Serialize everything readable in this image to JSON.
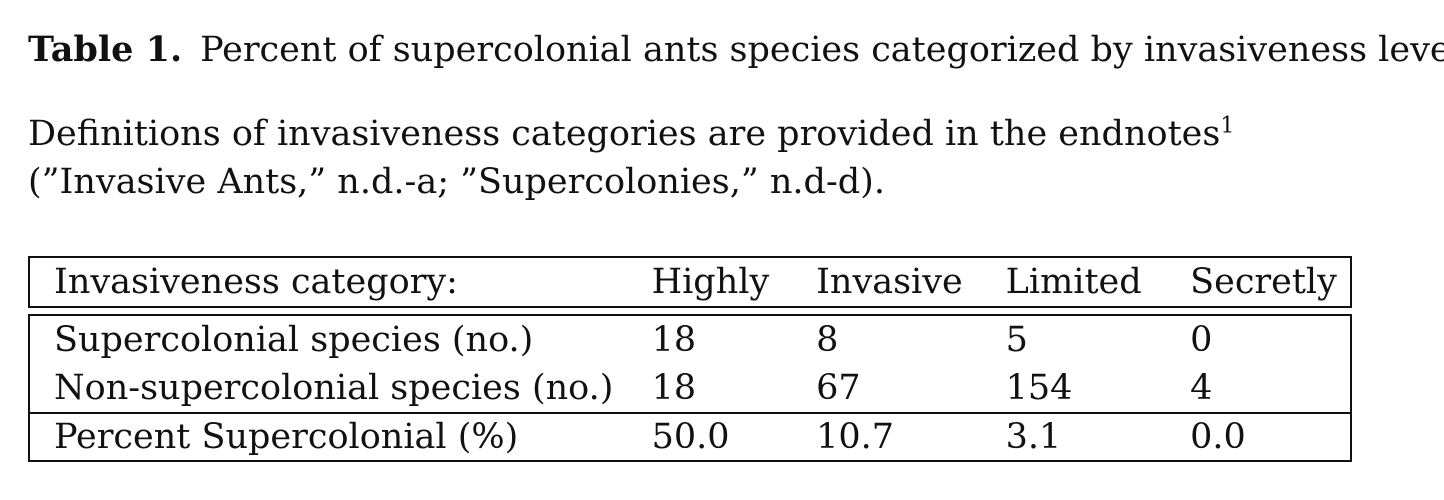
{
  "caption": {
    "label": "Table 1.",
    "text": "Percent of supercolonial ants species categorized by invasiveness level"
  },
  "description": {
    "text_before_mark": "Definitions of invasiveness categories are provided in the endnotes",
    "footnote_mark": "1",
    "text_after_mark": " (”Invasive Ants,” n.d.-a; ”Supercolonies,” n.d-d)."
  },
  "table": {
    "header": [
      "Invasiveness category:",
      "Highly",
      "Invasive",
      "Limited",
      "Secretly"
    ],
    "rows": [
      [
        "Supercolonial species (no.)",
        "18",
        "8",
        "5",
        "0"
      ],
      [
        "Non-supercolonial species (no.)",
        "18",
        "67",
        "154",
        "4"
      ]
    ],
    "footer": [
      "Percent Supercolonial (%)",
      "50.0",
      "10.7",
      "3.1",
      "0.0"
    ]
  }
}
